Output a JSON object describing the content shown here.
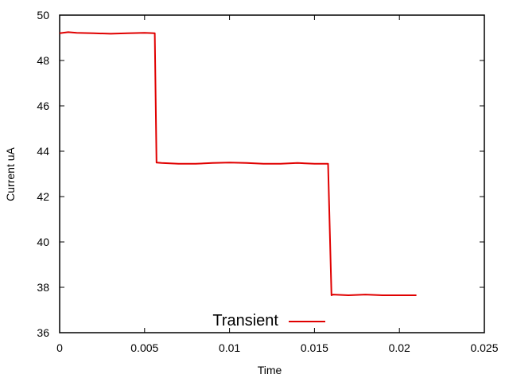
{
  "chart_data": {
    "type": "line",
    "title": "",
    "xlabel": "Time",
    "ylabel": "Current uA",
    "xlim": [
      0,
      0.025
    ],
    "ylim": [
      36,
      50
    ],
    "x_ticks": [
      0,
      0.005,
      0.01,
      0.015,
      0.02,
      0.025
    ],
    "x_tick_labels": [
      "0",
      "0.005",
      "0.01",
      "0.015",
      "0.02",
      "0.025"
    ],
    "y_ticks": [
      36,
      38,
      40,
      42,
      44,
      46,
      48,
      50
    ],
    "y_tick_labels": [
      "36",
      "38",
      "40",
      "42",
      "44",
      "46",
      "48",
      "50"
    ],
    "grid": false,
    "legend_position": "bottom-center",
    "series": [
      {
        "name": "Transient",
        "color": "#e00000",
        "x": [
          0,
          0.0005,
          0.001,
          0.002,
          0.003,
          0.004,
          0.005,
          0.0056,
          0.0057,
          0.006,
          0.007,
          0.008,
          0.009,
          0.01,
          0.011,
          0.012,
          0.013,
          0.014,
          0.015,
          0.0158,
          0.0159,
          0.016,
          0.0161,
          0.017,
          0.018,
          0.019,
          0.02,
          0.021
        ],
        "y": [
          49.2,
          49.25,
          49.22,
          49.2,
          49.18,
          49.2,
          49.22,
          49.2,
          43.5,
          43.48,
          43.45,
          43.45,
          43.48,
          43.5,
          43.48,
          43.45,
          43.45,
          43.48,
          43.45,
          43.45,
          40.6,
          37.65,
          37.68,
          37.65,
          37.68,
          37.65,
          37.65,
          37.65
        ]
      }
    ]
  }
}
